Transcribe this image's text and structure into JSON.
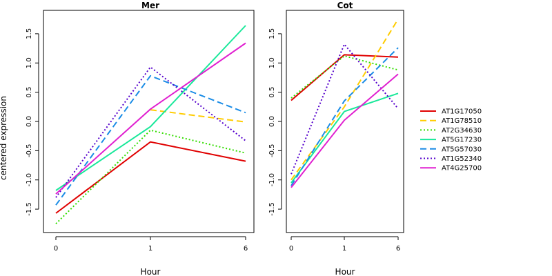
{
  "chart_data": {
    "type": "line",
    "ylabel": "centered expression",
    "xlabel": "Hour",
    "x": [
      "0",
      "1",
      "6"
    ],
    "ylim": [
      -1.9,
      1.9
    ],
    "yticks": [
      -1.5,
      -1.0,
      -0.5,
      0.0,
      0.5,
      1.0,
      1.5
    ],
    "ytick_labels": [
      "-1.5",
      "-1.0",
      "-0.5",
      "0.0",
      "0.5",
      "1.0",
      "1.5"
    ],
    "legend_position": "right",
    "grid": false,
    "series_styles": [
      {
        "color": "#e00000",
        "dash": "solid"
      },
      {
        "color": "#ffcc00",
        "dash": "long-dash"
      },
      {
        "color": "#33dd00",
        "dash": "dotted"
      },
      {
        "color": "#19e89a",
        "dash": "solid"
      },
      {
        "color": "#1a8ce6",
        "dash": "long-dash"
      },
      {
        "color": "#5500cc",
        "dash": "dotted"
      },
      {
        "color": "#e020d0",
        "dash": "solid"
      }
    ],
    "panels": [
      {
        "title": "Mer",
        "series": [
          {
            "name": "AT1G17050",
            "values": [
              -1.57,
              -0.35,
              -0.68
            ]
          },
          {
            "name": "AT1G78510",
            "values": [
              null,
              0.2,
              -0.01
            ]
          },
          {
            "name": "AT2G34630",
            "values": [
              -1.75,
              -0.15,
              -0.54
            ]
          },
          {
            "name": "AT5G17230",
            "values": [
              -1.18,
              -0.09,
              1.64
            ]
          },
          {
            "name": "AT5G57030",
            "values": [
              -1.43,
              0.78,
              0.15
            ]
          },
          {
            "name": "AT1G52340",
            "values": [
              -1.3,
              0.93,
              -0.33
            ]
          },
          {
            "name": "AT4G25700",
            "values": [
              -1.24,
              0.21,
              1.34
            ]
          }
        ]
      },
      {
        "title": "Cot",
        "series": [
          {
            "name": "AT1G17050",
            "values": [
              0.36,
              1.14,
              1.1
            ]
          },
          {
            "name": "AT1G78510",
            "values": [
              -1.0,
              0.25,
              1.75
            ]
          },
          {
            "name": "AT2G34630",
            "values": [
              0.4,
              1.12,
              0.88
            ]
          },
          {
            "name": "AT5G17230",
            "values": [
              -1.05,
              0.17,
              0.48
            ]
          },
          {
            "name": "AT5G57030",
            "values": [
              -1.1,
              0.35,
              1.26
            ]
          },
          {
            "name": "AT1G52340",
            "values": [
              -0.9,
              1.32,
              0.22
            ]
          },
          {
            "name": "AT4G25700",
            "values": [
              -1.13,
              0.02,
              0.81
            ]
          }
        ]
      }
    ]
  }
}
